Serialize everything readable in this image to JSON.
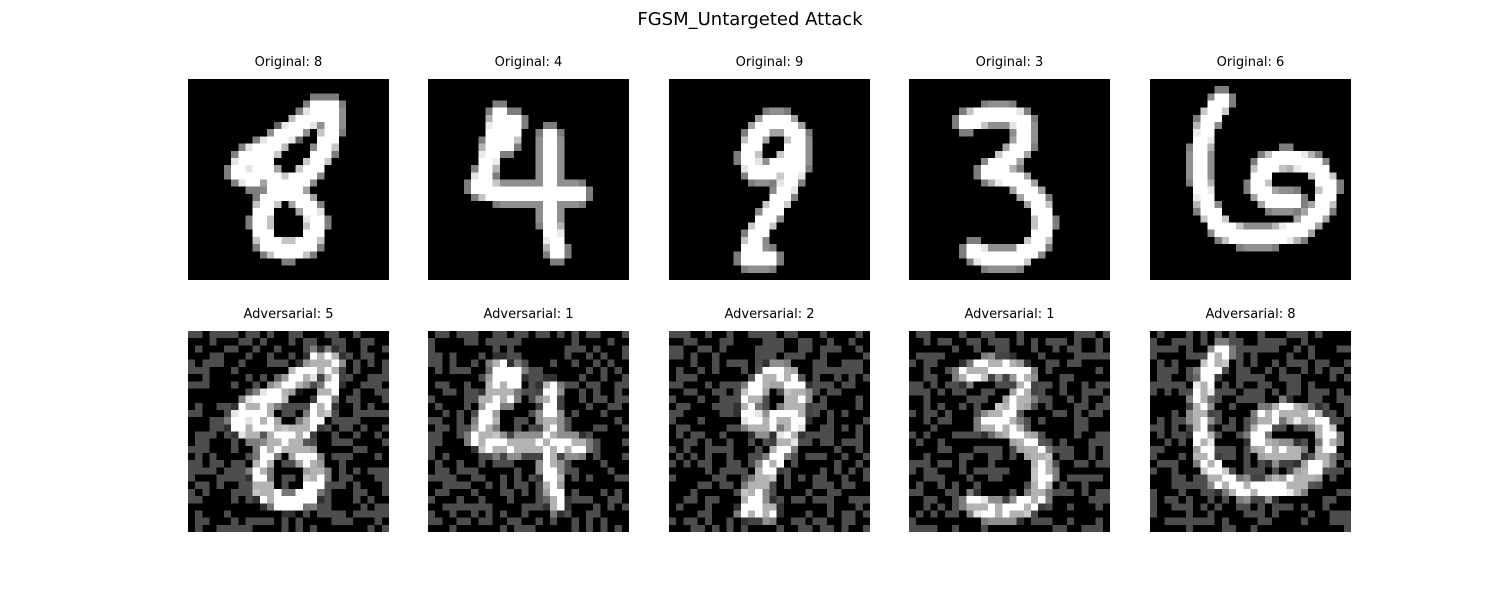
{
  "title": "FGSM_Untargeted Attack",
  "original_prefix": "Original: ",
  "adversarial_prefix": "Adversarial: ",
  "samples": [
    {
      "original_label": "Original: 8",
      "adversarial_label": "Adversarial: 5",
      "original_digit": "8",
      "adversarial_prediction": "5"
    },
    {
      "original_label": "Original: 4",
      "adversarial_label": "Adversarial: 1",
      "original_digit": "4",
      "adversarial_prediction": "1"
    },
    {
      "original_label": "Original: 9",
      "adversarial_label": "Adversarial: 2",
      "original_digit": "9",
      "adversarial_prediction": "2"
    },
    {
      "original_label": "Original: 3",
      "adversarial_label": "Adversarial: 1",
      "original_digit": "3",
      "adversarial_prediction": "1"
    },
    {
      "original_label": "Original: 6",
      "adversarial_label": "Adversarial: 8",
      "original_digit": "6",
      "adversarial_prediction": "8"
    }
  ],
  "colormap": "gray",
  "image_grid": "28x28"
}
